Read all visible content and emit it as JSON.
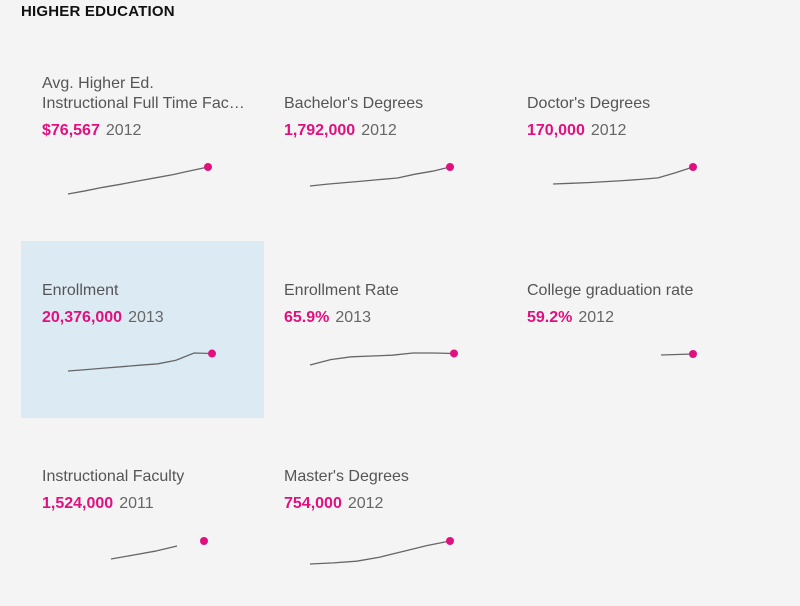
{
  "section_title": "HIGHER EDUCATION",
  "colors": {
    "accent": "#e0117f",
    "line": "#666666",
    "selected_bg": "#dceaf3",
    "background": "#f4f4f4"
  },
  "tiles": [
    {
      "title_lines": [
        "Avg. Higher Ed.",
        "Instructional Full Time Fac…"
      ],
      "value": "$76,567",
      "year": "2012",
      "selected": false,
      "chart_data": {
        "type": "line",
        "values": [
          0.0,
          0.12,
          0.25,
          0.36,
          0.48,
          0.6,
          0.72,
          0.86,
          1.0
        ]
      }
    },
    {
      "title_lines": [
        "Bachelor's Degrees"
      ],
      "value": "1,792,000",
      "year": "2012",
      "selected": false,
      "chart_data": {
        "type": "line",
        "values": [
          0.0,
          0.1,
          0.18,
          0.26,
          0.34,
          0.42,
          0.62,
          0.78,
          1.0
        ]
      }
    },
    {
      "title_lines": [
        "Doctor's Degrees"
      ],
      "value": "170,000",
      "year": "2012",
      "selected": false,
      "chart_data": {
        "type": "line",
        "values": [
          0.0,
          0.04,
          0.08,
          0.14,
          0.2,
          0.27,
          0.36,
          0.66,
          1.0
        ]
      }
    },
    {
      "title_lines": [
        "Enrollment"
      ],
      "value": "20,376,000",
      "year": "2013",
      "selected": true,
      "chart_data": {
        "type": "line",
        "values": [
          0.0,
          0.08,
          0.16,
          0.24,
          0.32,
          0.4,
          0.6,
          1.0,
          0.97
        ]
      }
    },
    {
      "title_lines": [
        "Enrollment Rate"
      ],
      "value": "65.9%",
      "year": "2013",
      "selected": false,
      "chart_data": {
        "type": "line",
        "values": [
          0.0,
          0.45,
          0.68,
          0.75,
          0.82,
          1.0,
          1.0,
          0.96
        ]
      }
    },
    {
      "title_lines": [
        "College graduation rate"
      ],
      "value": "59.2%",
      "year": "2012",
      "selected": false,
      "chart_data": {
        "type": "line",
        "values": [
          0.0,
          1.0
        ]
      }
    },
    {
      "title_lines": [
        "Instructional Faculty"
      ],
      "value": "1,524,000",
      "year": "2011",
      "selected": false,
      "chart_data": {
        "type": "line",
        "values": [
          0.0,
          0.3,
          0.6,
          1.0
        ]
      }
    },
    {
      "title_lines": [
        "Master's Degrees"
      ],
      "value": "754,000",
      "year": "2012",
      "selected": false,
      "chart_data": {
        "type": "line",
        "values": [
          0.0,
          0.05,
          0.12,
          0.3,
          0.55,
          0.8,
          1.0
        ]
      }
    }
  ]
}
